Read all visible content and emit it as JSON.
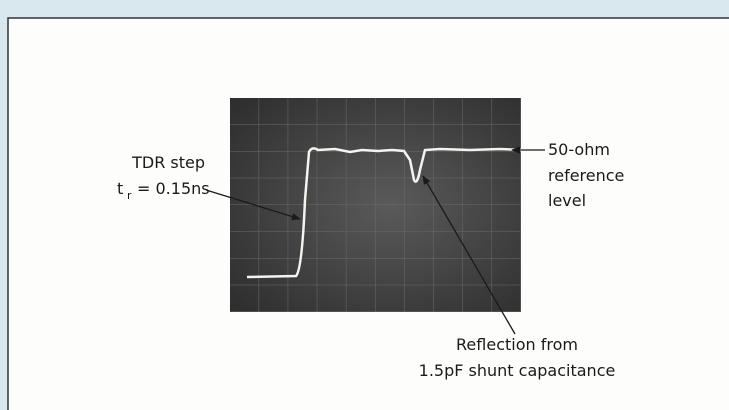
{
  "labels": {
    "step": {
      "line1": "TDR step",
      "symbol": "t",
      "subscript": "r",
      "rest": "= 0.15ns"
    },
    "reference": {
      "line1": "50-ohm",
      "line2": "reference",
      "line3": "level"
    },
    "reflection": {
      "line1": "Reflection from",
      "line2": "1.5pF shunt capacitance"
    }
  }
}
